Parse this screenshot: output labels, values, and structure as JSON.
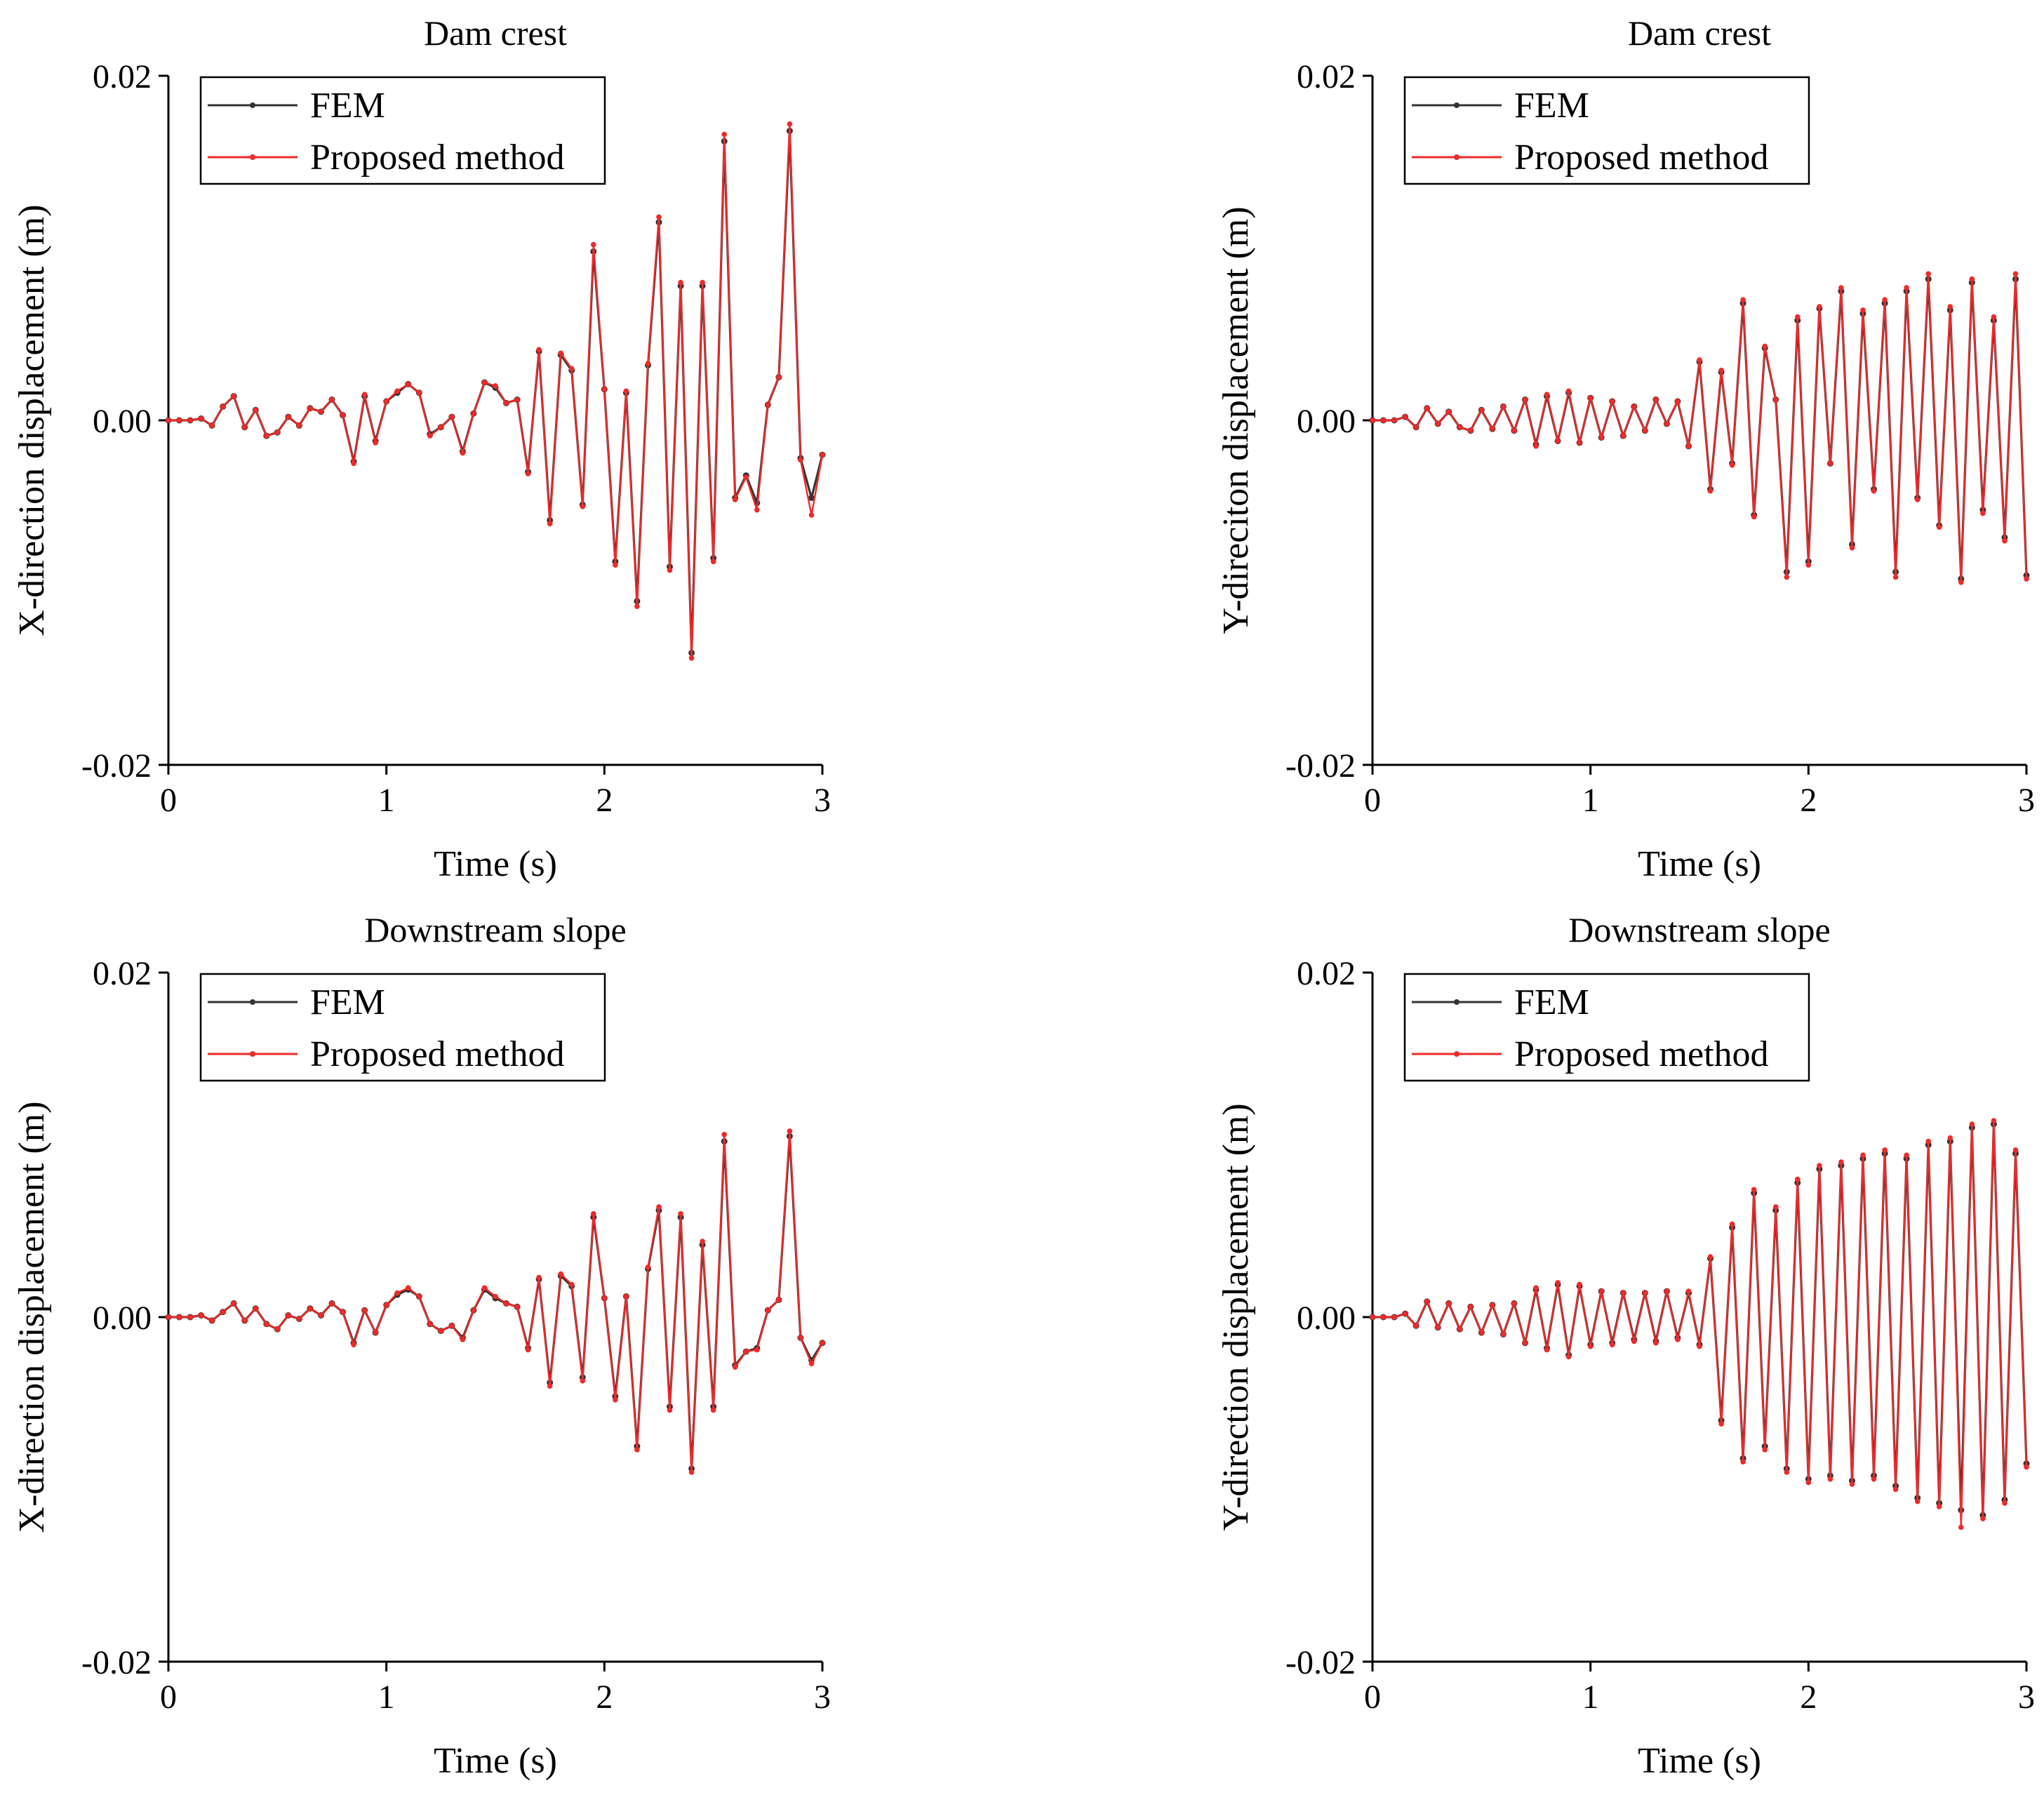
{
  "figure": {
    "legend": {
      "fem_label": "FEM",
      "proposed_label": "Proposed method"
    }
  },
  "colors": {
    "fem": "#333333",
    "proposed": "#ee2a2a",
    "axis": "#000000"
  },
  "chart_data": [
    {
      "type": "line",
      "title": "Dam crest",
      "xlabel": "Time (s)",
      "ylabel": "X-direction displacement (m)",
      "xlim": [
        0,
        3
      ],
      "ylim": [
        -0.02,
        0.02
      ],
      "xticks": [
        "0",
        "1",
        "2",
        "3"
      ],
      "yticks": [
        "-0.02",
        "0.00",
        "0.02"
      ],
      "legend_position": "top-left",
      "x": [
        0,
        0.05,
        0.1,
        0.15,
        0.2,
        0.25,
        0.3,
        0.35,
        0.4,
        0.45,
        0.5,
        0.55,
        0.6,
        0.65,
        0.7,
        0.75,
        0.8,
        0.85,
        0.9,
        0.95,
        1.0,
        1.05,
        1.1,
        1.15,
        1.2,
        1.25,
        1.3,
        1.35,
        1.4,
        1.45,
        1.5,
        1.55,
        1.6,
        1.65,
        1.7,
        1.75,
        1.8,
        1.85,
        1.9,
        1.95,
        2.0,
        2.05,
        2.1,
        2.15,
        2.2,
        2.25,
        2.3,
        2.35,
        2.4,
        2.45,
        2.5,
        2.55,
        2.6,
        2.65,
        2.7,
        2.75,
        2.8,
        2.85,
        2.9,
        2.95,
        3.0
      ],
      "series": [
        {
          "name": "FEM",
          "values": [
            0,
            0,
            0,
            0.0001,
            -0.0003,
            0.0008,
            0.0014,
            -0.0004,
            0.0006,
            -0.0009,
            -0.0007,
            0.0002,
            -0.0003,
            0.0007,
            0.0005,
            0.0012,
            0.0003,
            -0.0024,
            0.0014,
            -0.0012,
            0.0011,
            0.0016,
            0.0021,
            0.0016,
            -0.0008,
            -0.0004,
            0.0002,
            -0.0018,
            0.0004,
            0.0022,
            0.0019,
            0.001,
            0.0012,
            -0.003,
            0.004,
            -0.0058,
            0.0038,
            0.0029,
            -0.0049,
            0.0098,
            0.0018,
            -0.0082,
            0.0016,
            -0.0105,
            0.0032,
            0.0115,
            -0.0085,
            0.0078,
            -0.0135,
            0.0078,
            -0.008,
            0.0162,
            -0.0045,
            -0.0032,
            -0.0048,
            0.0009,
            0.0025,
            0.0168,
            -0.0022,
            -0.0045,
            -0.002
          ]
        },
        {
          "name": "Proposed method",
          "values": [
            0,
            0,
            0,
            0.0001,
            -0.0003,
            0.0008,
            0.0014,
            -0.0004,
            0.0006,
            -0.0009,
            -0.0007,
            0.0002,
            -0.0003,
            0.0007,
            0.0005,
            0.0012,
            0.0003,
            -0.0025,
            0.0015,
            -0.0013,
            0.0011,
            0.0017,
            0.0021,
            0.0016,
            -0.0009,
            -0.0004,
            0.0002,
            -0.0019,
            0.0004,
            0.0022,
            0.002,
            0.001,
            0.0012,
            -0.0031,
            0.0041,
            -0.006,
            0.0039,
            0.003,
            -0.005,
            0.0102,
            0.0018,
            -0.0084,
            0.0017,
            -0.0108,
            0.0033,
            0.0118,
            -0.0087,
            0.008,
            -0.0138,
            0.008,
            -0.0082,
            0.0166,
            -0.0046,
            -0.0033,
            -0.0052,
            0.0009,
            0.0025,
            0.0172,
            -0.0023,
            -0.0055,
            -0.002
          ]
        }
      ]
    },
    {
      "type": "line",
      "title": "Dam crest",
      "xlabel": "Time (s)",
      "ylabel": "Y-direciton displacement (m)",
      "xlim": [
        0,
        3
      ],
      "ylim": [
        -0.02,
        0.02
      ],
      "xticks": [
        "0",
        "1",
        "2",
        "3"
      ],
      "yticks": [
        "-0.02",
        "0.00",
        "0.02"
      ],
      "legend_position": "top-left",
      "x": [
        0,
        0.05,
        0.1,
        0.15,
        0.2,
        0.25,
        0.3,
        0.35,
        0.4,
        0.45,
        0.5,
        0.55,
        0.6,
        0.65,
        0.7,
        0.75,
        0.8,
        0.85,
        0.9,
        0.95,
        1.0,
        1.05,
        1.1,
        1.15,
        1.2,
        1.25,
        1.3,
        1.35,
        1.4,
        1.45,
        1.5,
        1.55,
        1.6,
        1.65,
        1.7,
        1.75,
        1.8,
        1.85,
        1.9,
        1.95,
        2.0,
        2.05,
        2.1,
        2.15,
        2.2,
        2.25,
        2.3,
        2.35,
        2.4,
        2.45,
        2.5,
        2.55,
        2.6,
        2.65,
        2.7,
        2.75,
        2.8,
        2.85,
        2.9,
        2.95,
        3.0
      ],
      "series": [
        {
          "name": "FEM",
          "values": [
            0,
            0,
            0,
            0.0002,
            -0.0004,
            0.0007,
            -0.0002,
            0.0005,
            -0.0004,
            -0.0006,
            0.0006,
            -0.0005,
            0.0008,
            -0.0006,
            0.0012,
            -0.0014,
            0.0014,
            -0.0012,
            0.0016,
            -0.0013,
            0.0013,
            -0.001,
            0.0011,
            -0.0009,
            0.0008,
            -0.0006,
            0.0012,
            -0.0002,
            0.0011,
            -0.0015,
            0.0034,
            -0.004,
            0.0028,
            -0.0025,
            0.0068,
            -0.0055,
            0.0042,
            0.0012,
            -0.0088,
            0.0058,
            -0.0082,
            0.0065,
            -0.0025,
            0.0075,
            -0.0072,
            0.0062,
            -0.004,
            0.0068,
            -0.0088,
            0.0075,
            -0.0045,
            0.0082,
            -0.0061,
            0.0064,
            -0.0092,
            0.008,
            -0.0052,
            0.0058,
            -0.0068,
            0.0082,
            -0.009
          ]
        },
        {
          "name": "Proposed method",
          "values": [
            0,
            0,
            0,
            0.0002,
            -0.0004,
            0.0007,
            -0.0002,
            0.0005,
            -0.0004,
            -0.0006,
            0.0006,
            -0.0005,
            0.0008,
            -0.0006,
            0.0012,
            -0.0015,
            0.0015,
            -0.0012,
            0.0017,
            -0.0013,
            0.0013,
            -0.001,
            0.0011,
            -0.0009,
            0.0008,
            -0.0006,
            0.0012,
            -0.0002,
            0.0011,
            -0.0015,
            0.0035,
            -0.0041,
            0.0029,
            -0.0026,
            0.007,
            -0.0056,
            0.0043,
            0.0012,
            -0.0091,
            0.006,
            -0.0084,
            0.0066,
            -0.0025,
            0.0077,
            -0.0074,
            0.0064,
            -0.0041,
            0.007,
            -0.0091,
            0.0077,
            -0.0046,
            0.0085,
            -0.0062,
            0.0066,
            -0.0094,
            0.0082,
            -0.0054,
            0.006,
            -0.007,
            0.0085,
            -0.0092
          ]
        }
      ]
    },
    {
      "type": "line",
      "title": "Downstream slope",
      "xlabel": "Time (s)",
      "ylabel": "X-direction displacement (m)",
      "xlim": [
        0,
        3
      ],
      "ylim": [
        -0.02,
        0.02
      ],
      "xticks": [
        "0",
        "1",
        "2",
        "3"
      ],
      "yticks": [
        "-0.02",
        "0.00",
        "0.02"
      ],
      "legend_position": "top-left",
      "x": [
        0,
        0.05,
        0.1,
        0.15,
        0.2,
        0.25,
        0.3,
        0.35,
        0.4,
        0.45,
        0.5,
        0.55,
        0.6,
        0.65,
        0.7,
        0.75,
        0.8,
        0.85,
        0.9,
        0.95,
        1.0,
        1.05,
        1.1,
        1.15,
        1.2,
        1.25,
        1.3,
        1.35,
        1.4,
        1.45,
        1.5,
        1.55,
        1.6,
        1.65,
        1.7,
        1.75,
        1.8,
        1.85,
        1.9,
        1.95,
        2.0,
        2.05,
        2.1,
        2.15,
        2.2,
        2.25,
        2.3,
        2.35,
        2.4,
        2.45,
        2.5,
        2.55,
        2.6,
        2.65,
        2.7,
        2.75,
        2.8,
        2.85,
        2.9,
        2.95,
        3.0
      ],
      "series": [
        {
          "name": "FEM",
          "values": [
            0,
            0,
            0,
            0.0001,
            -0.0002,
            0.0003,
            0.0008,
            -0.0002,
            0.0005,
            -0.0004,
            -0.0007,
            0.0001,
            -0.0001,
            0.0005,
            0.0001,
            0.0008,
            0.0003,
            -0.0015,
            0.0004,
            -0.0009,
            0.0007,
            0.0013,
            0.0016,
            0.0012,
            -0.0004,
            -0.0008,
            -0.0005,
            -0.0012,
            0.0004,
            0.0016,
            0.0011,
            0.0008,
            0.0006,
            -0.0018,
            0.0022,
            -0.0038,
            0.0024,
            0.0018,
            -0.0035,
            0.0058,
            0.0011,
            -0.0046,
            0.0012,
            -0.0075,
            0.0028,
            0.0062,
            -0.0052,
            0.0058,
            -0.0088,
            0.0042,
            -0.0052,
            0.0102,
            -0.0028,
            -0.002,
            -0.0018,
            0.0004,
            0.001,
            0.0105,
            -0.0012,
            -0.0025,
            -0.0015
          ]
        },
        {
          "name": "Proposed method",
          "values": [
            0,
            0,
            0,
            0.0001,
            -0.0002,
            0.0003,
            0.0008,
            -0.0002,
            0.0005,
            -0.0004,
            -0.0007,
            0.0001,
            -0.0001,
            0.0005,
            0.0001,
            0.0008,
            0.0003,
            -0.0016,
            0.0004,
            -0.0009,
            0.0007,
            0.0014,
            0.0017,
            0.0012,
            -0.0004,
            -0.0008,
            -0.0005,
            -0.0013,
            0.0004,
            0.0017,
            0.0012,
            0.0008,
            0.0006,
            -0.0019,
            0.0023,
            -0.004,
            0.0025,
            0.0019,
            -0.0037,
            0.006,
            0.0011,
            -0.0048,
            0.0012,
            -0.0077,
            0.0029,
            0.0064,
            -0.0054,
            0.006,
            -0.009,
            0.0044,
            -0.0054,
            0.0106,
            -0.0029,
            -0.002,
            -0.0019,
            0.0004,
            0.001,
            0.0108,
            -0.0012,
            -0.0027,
            -0.0015
          ]
        }
      ]
    },
    {
      "type": "line",
      "title": "Downstream slope",
      "xlabel": "Time (s)",
      "ylabel": "Y-direction displacement (m)",
      "xlim": [
        0,
        3
      ],
      "ylim": [
        -0.02,
        0.02
      ],
      "xticks": [
        "0",
        "1",
        "2",
        "3"
      ],
      "yticks": [
        "-0.02",
        "0.00",
        "0.02"
      ],
      "legend_position": "top-left",
      "x": [
        0,
        0.05,
        0.1,
        0.15,
        0.2,
        0.25,
        0.3,
        0.35,
        0.4,
        0.45,
        0.5,
        0.55,
        0.6,
        0.65,
        0.7,
        0.75,
        0.8,
        0.85,
        0.9,
        0.95,
        1.0,
        1.05,
        1.1,
        1.15,
        1.2,
        1.25,
        1.3,
        1.35,
        1.4,
        1.45,
        1.5,
        1.55,
        1.6,
        1.65,
        1.7,
        1.75,
        1.8,
        1.85,
        1.9,
        1.95,
        2.0,
        2.05,
        2.1,
        2.15,
        2.2,
        2.25,
        2.3,
        2.35,
        2.4,
        2.45,
        2.5,
        2.55,
        2.6,
        2.65,
        2.7,
        2.75,
        2.8,
        2.85,
        2.9,
        2.95,
        3.0
      ],
      "series": [
        {
          "name": "FEM",
          "values": [
            0,
            0,
            0,
            0.0002,
            -0.0005,
            0.0009,
            -0.0006,
            0.0008,
            -0.0007,
            0.0006,
            -0.0009,
            0.0007,
            -0.001,
            0.0008,
            -0.0015,
            0.0016,
            -0.0018,
            0.0019,
            -0.0022,
            0.0018,
            -0.0016,
            0.0015,
            -0.0015,
            0.0014,
            -0.0013,
            0.0014,
            -0.0014,
            0.0015,
            -0.0012,
            0.0014,
            -0.0016,
            0.0034,
            -0.006,
            0.0052,
            -0.0082,
            0.0072,
            -0.0075,
            0.0062,
            -0.0088,
            0.0078,
            -0.0094,
            0.0086,
            -0.0092,
            0.0088,
            -0.0095,
            0.0092,
            -0.0092,
            0.0095,
            -0.0098,
            0.0092,
            -0.0105,
            0.01,
            -0.0108,
            0.0102,
            -0.0112,
            0.011,
            -0.0115,
            0.0112,
            -0.0106,
            0.0095,
            -0.0085
          ]
        },
        {
          "name": "Proposed method",
          "values": [
            0,
            0,
            0,
            0.0002,
            -0.0005,
            0.0009,
            -0.0006,
            0.0008,
            -0.0007,
            0.0006,
            -0.0009,
            0.0007,
            -0.001,
            0.0008,
            -0.0015,
            0.0017,
            -0.0019,
            0.002,
            -0.0023,
            0.0019,
            -0.0017,
            0.0015,
            -0.0016,
            0.0014,
            -0.0014,
            0.0014,
            -0.0015,
            0.0015,
            -0.0013,
            0.0015,
            -0.0017,
            0.0035,
            -0.0062,
            0.0054,
            -0.0084,
            0.0074,
            -0.0077,
            0.0064,
            -0.009,
            0.008,
            -0.0096,
            0.0088,
            -0.0094,
            0.009,
            -0.0097,
            0.0094,
            -0.0094,
            0.0097,
            -0.01,
            0.0094,
            -0.0107,
            0.0102,
            -0.011,
            0.0104,
            -0.0122,
            0.0112,
            -0.0117,
            0.0114,
            -0.0108,
            0.0097,
            -0.0087
          ]
        }
      ]
    }
  ]
}
